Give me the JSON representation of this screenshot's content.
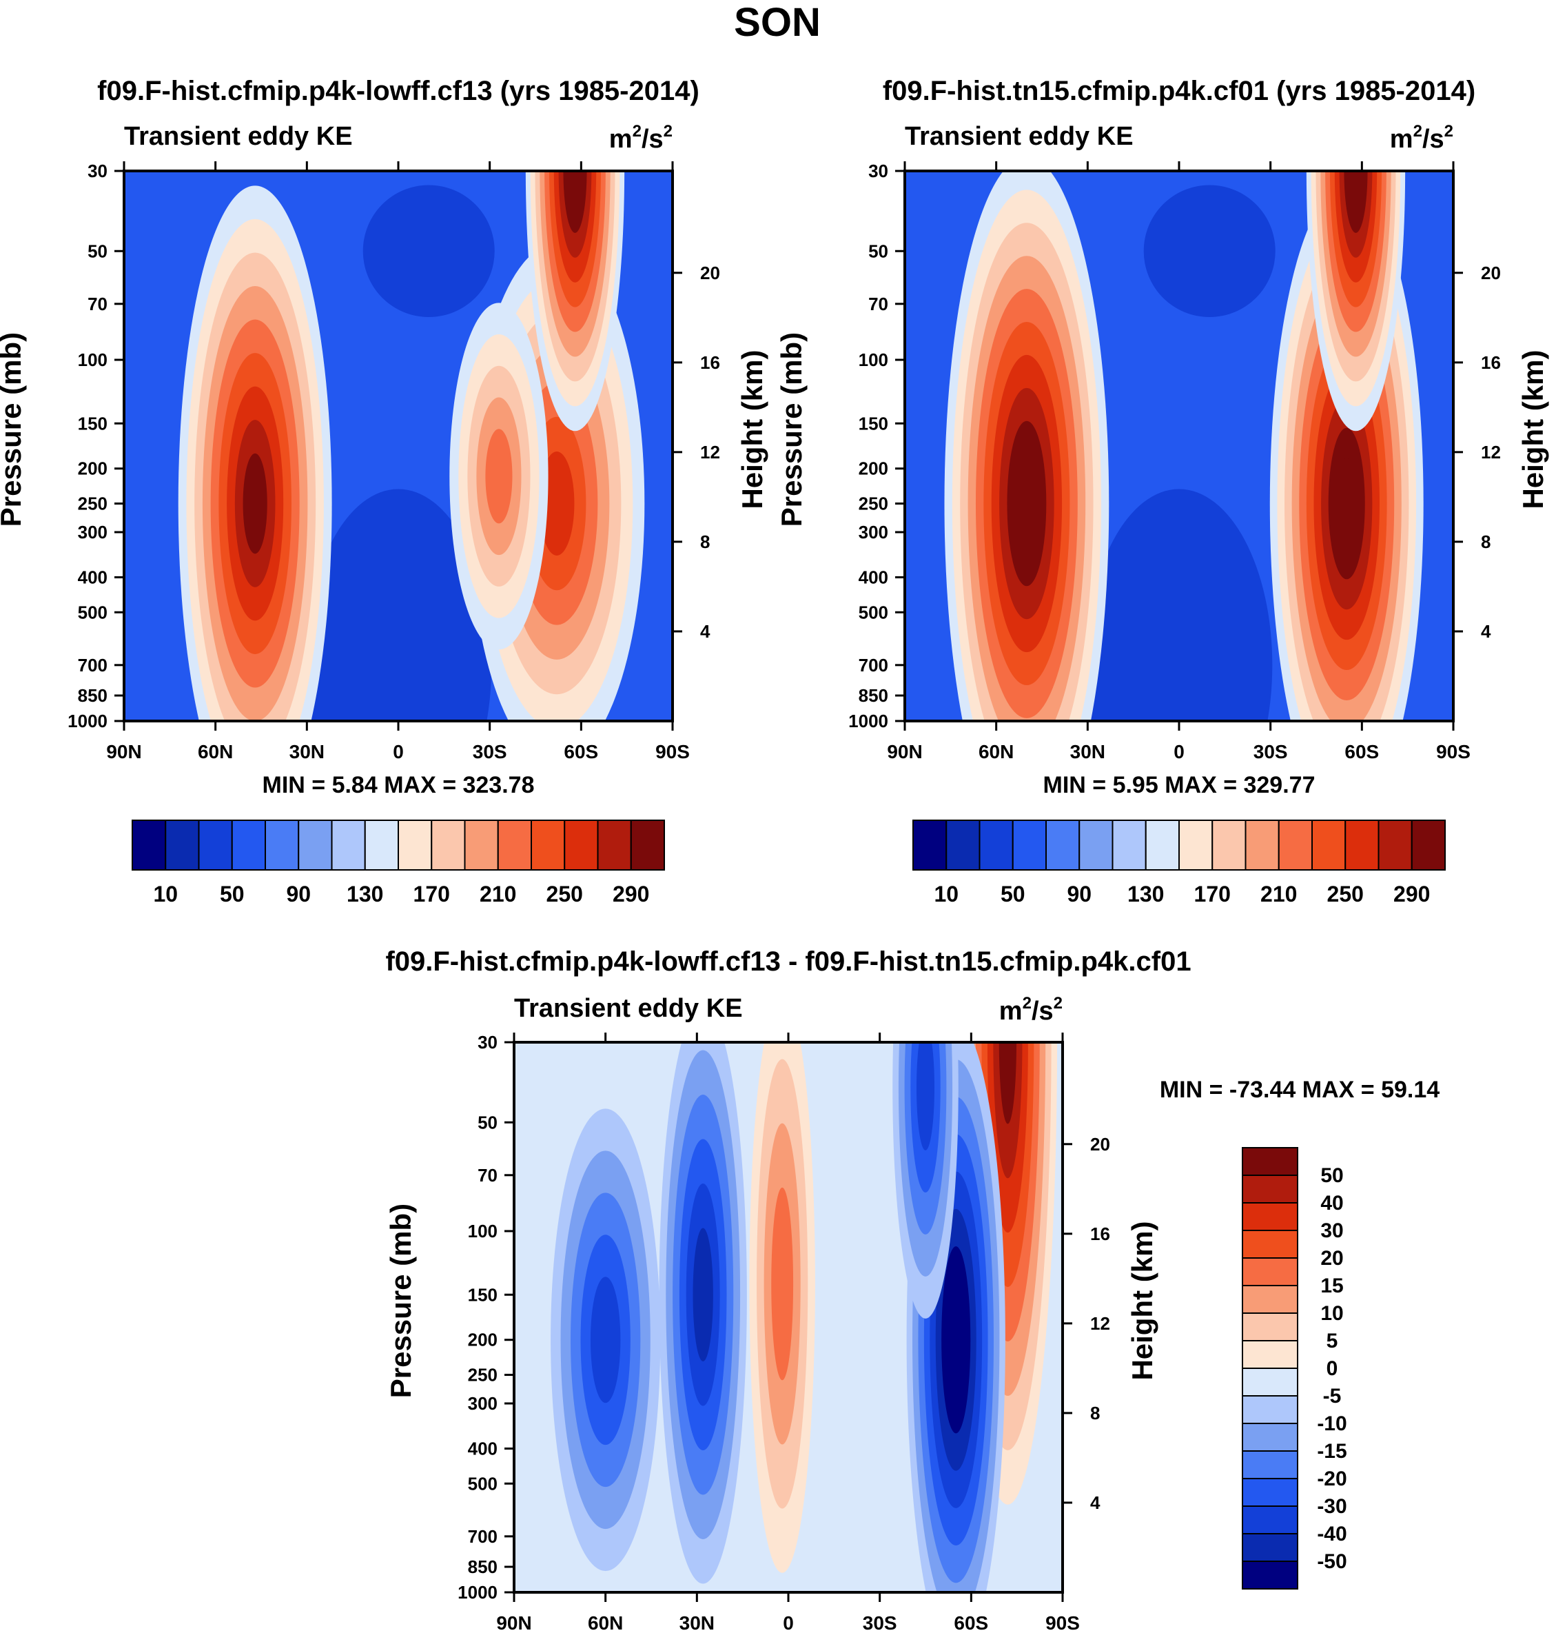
{
  "figure_title": "SON",
  "chart_data": [
    {
      "type": "heatmap",
      "title": "f09.F-hist.cfmip.p4k-lowff.cf13 (yrs 1985-2014)",
      "subtitle": "Transient eddy KE",
      "units": "m²/s²",
      "units_base": "m",
      "units_sup1": "2",
      "units_mid": "/s",
      "units_sup2": "2",
      "xlabel": "",
      "ylabel": "Pressure (mb)",
      "y2label": "Height (km)",
      "x_ticks": [
        "90N",
        "60N",
        "30N",
        "0",
        "30S",
        "60S",
        "90S"
      ],
      "x_values": [
        90,
        60,
        30,
        0,
        -30,
        -60,
        -90
      ],
      "y_ticks": [
        "30",
        "50",
        "70",
        "100",
        "150",
        "200",
        "250",
        "300",
        "400",
        "500",
        "700",
        "850",
        "1000"
      ],
      "y_values": [
        30,
        50,
        70,
        100,
        150,
        200,
        250,
        300,
        400,
        500,
        700,
        850,
        1000
      ],
      "y2_ticks": [
        "20",
        "16",
        "12",
        "8",
        "4"
      ],
      "y2_values": [
        20,
        16,
        12,
        8,
        4
      ],
      "ylim": [
        1000,
        30
      ],
      "y_scale": "log",
      "stats": "MIN =   5.84  MAX = 323.78",
      "min": 5.84,
      "max": 323.78,
      "features": [
        {
          "lat": 47,
          "p": 250,
          "value": 300,
          "width_deg": 14,
          "height_decades": 0.55
        },
        {
          "lat": -52,
          "p": 250,
          "value": 255,
          "width_deg": 16,
          "height_decades": 0.45
        },
        {
          "lat": -33,
          "p": 210,
          "value": 215,
          "width_deg": 9,
          "height_decades": 0.3
        },
        {
          "lat": -58,
          "p": 30,
          "value": 323,
          "width_deg": 9,
          "height_decades": 0.45
        }
      ],
      "colorbar": {
        "labels": [
          "10",
          "50",
          "90",
          "130",
          "170",
          "210",
          "250",
          "290"
        ],
        "levels": [
          10,
          30,
          50,
          70,
          90,
          110,
          130,
          150,
          170,
          190,
          210,
          230,
          250,
          270,
          290,
          310
        ],
        "colors": [
          "#000080",
          "#0a2bb0",
          "#1340d8",
          "#2358f0",
          "#4a7cf5",
          "#7aa0f2",
          "#aec7fb",
          "#d9e8fb",
          "#fde5d2",
          "#fbc7ad",
          "#f89c76",
          "#f66c43",
          "#ef4f1d",
          "#dc2e0c",
          "#b01c0d",
          "#7a0a0a"
        ]
      }
    },
    {
      "type": "heatmap",
      "title": "f09.F-hist.tn15.cfmip.p4k.cf01 (yrs 1985-2014)",
      "subtitle": "Transient eddy KE",
      "units": "m²/s²",
      "units_base": "m",
      "units_sup1": "2",
      "units_mid": "/s",
      "units_sup2": "2",
      "xlabel": "",
      "ylabel": "Pressure (mb)",
      "y2label": "Height (km)",
      "x_ticks": [
        "90N",
        "60N",
        "30N",
        "0",
        "30S",
        "60S",
        "90S"
      ],
      "x_values": [
        90,
        60,
        30,
        0,
        -30,
        -60,
        -90
      ],
      "y_ticks": [
        "30",
        "50",
        "70",
        "100",
        "150",
        "200",
        "250",
        "300",
        "400",
        "500",
        "700",
        "850",
        "1000"
      ],
      "y_values": [
        30,
        50,
        70,
        100,
        150,
        200,
        250,
        300,
        400,
        500,
        700,
        850,
        1000
      ],
      "y2_ticks": [
        "20",
        "16",
        "12",
        "8",
        "4"
      ],
      "y2_values": [
        20,
        16,
        12,
        8,
        4
      ],
      "ylim": [
        1000,
        30
      ],
      "y_scale": "log",
      "stats": "MIN =   5.95  MAX = 329.77",
      "min": 5.95,
      "max": 329.77,
      "features": [
        {
          "lat": 50,
          "p": 250,
          "value": 320,
          "width_deg": 15,
          "height_decades": 0.6
        },
        {
          "lat": -55,
          "p": 250,
          "value": 329,
          "width_deg": 14,
          "height_decades": 0.55
        },
        {
          "lat": -58,
          "p": 30,
          "value": 329,
          "width_deg": 9,
          "height_decades": 0.45
        }
      ],
      "colorbar": {
        "labels": [
          "10",
          "50",
          "90",
          "130",
          "170",
          "210",
          "250",
          "290"
        ],
        "levels": [
          10,
          30,
          50,
          70,
          90,
          110,
          130,
          150,
          170,
          190,
          210,
          230,
          250,
          270,
          290,
          310
        ],
        "colors": [
          "#000080",
          "#0a2bb0",
          "#1340d8",
          "#2358f0",
          "#4a7cf5",
          "#7aa0f2",
          "#aec7fb",
          "#d9e8fb",
          "#fde5d2",
          "#fbc7ad",
          "#f89c76",
          "#f66c43",
          "#ef4f1d",
          "#dc2e0c",
          "#b01c0d",
          "#7a0a0a"
        ]
      }
    },
    {
      "type": "heatmap",
      "title": "f09.F-hist.cfmip.p4k-lowff.cf13 - f09.F-hist.tn15.cfmip.p4k.cf01",
      "subtitle": "Transient eddy KE",
      "units": "m²/s²",
      "units_base": "m",
      "units_sup1": "2",
      "units_mid": "/s",
      "units_sup2": "2",
      "xlabel": "",
      "ylabel": "Pressure (mb)",
      "y2label": "Height (km)",
      "x_ticks": [
        "90N",
        "60N",
        "30N",
        "0",
        "30S",
        "60S",
        "90S"
      ],
      "x_values": [
        90,
        60,
        30,
        0,
        -30,
        -60,
        -90
      ],
      "y_ticks": [
        "30",
        "50",
        "70",
        "100",
        "150",
        "200",
        "250",
        "300",
        "400",
        "500",
        "700",
        "850",
        "1000"
      ],
      "y_values": [
        30,
        50,
        70,
        100,
        150,
        200,
        250,
        300,
        400,
        500,
        700,
        850,
        1000
      ],
      "y2_ticks": [
        "20",
        "16",
        "12",
        "8",
        "4"
      ],
      "y2_values": [
        20,
        16,
        12,
        8,
        4
      ],
      "ylim": [
        1000,
        30
      ],
      "y_scale": "log",
      "stats": "MIN = -73.44  MAX =  59.14",
      "min": -73.44,
      "max": 59.14,
      "features": [
        {
          "lat": -72,
          "p": 30,
          "value": 59,
          "width_deg": 9,
          "height_decades": 0.8
        },
        {
          "lat": -55,
          "p": 200,
          "value": -73,
          "width_deg": 9,
          "height_decades": 0.55
        },
        {
          "lat": 28,
          "p": 150,
          "value": -45,
          "width_deg": 8,
          "height_decades": 0.5
        },
        {
          "lat": 2,
          "p": 140,
          "value": 18,
          "width_deg": 6,
          "height_decades": 0.5
        },
        {
          "lat": 60,
          "p": 200,
          "value": -35,
          "width_deg": 10,
          "height_decades": 0.4
        },
        {
          "lat": -45,
          "p": 40,
          "value": -40,
          "width_deg": 6,
          "height_decades": 0.4
        }
      ],
      "colorbar": {
        "labels": [
          "50",
          "40",
          "30",
          "20",
          "15",
          "10",
          "5",
          "0",
          "-5",
          "-10",
          "-15",
          "-20",
          "-30",
          "-40",
          "-50"
        ],
        "colors_top_to_bottom": [
          "#7a0a0a",
          "#b01c0d",
          "#dc2e0c",
          "#ef4f1d",
          "#f66c43",
          "#f89c76",
          "#fbc7ad",
          "#fde5d2",
          "#d9e8fb",
          "#aec7fb",
          "#7aa0f2",
          "#4a7cf5",
          "#2358f0",
          "#1340d8",
          "#0a2bb0",
          "#000080"
        ]
      }
    }
  ]
}
